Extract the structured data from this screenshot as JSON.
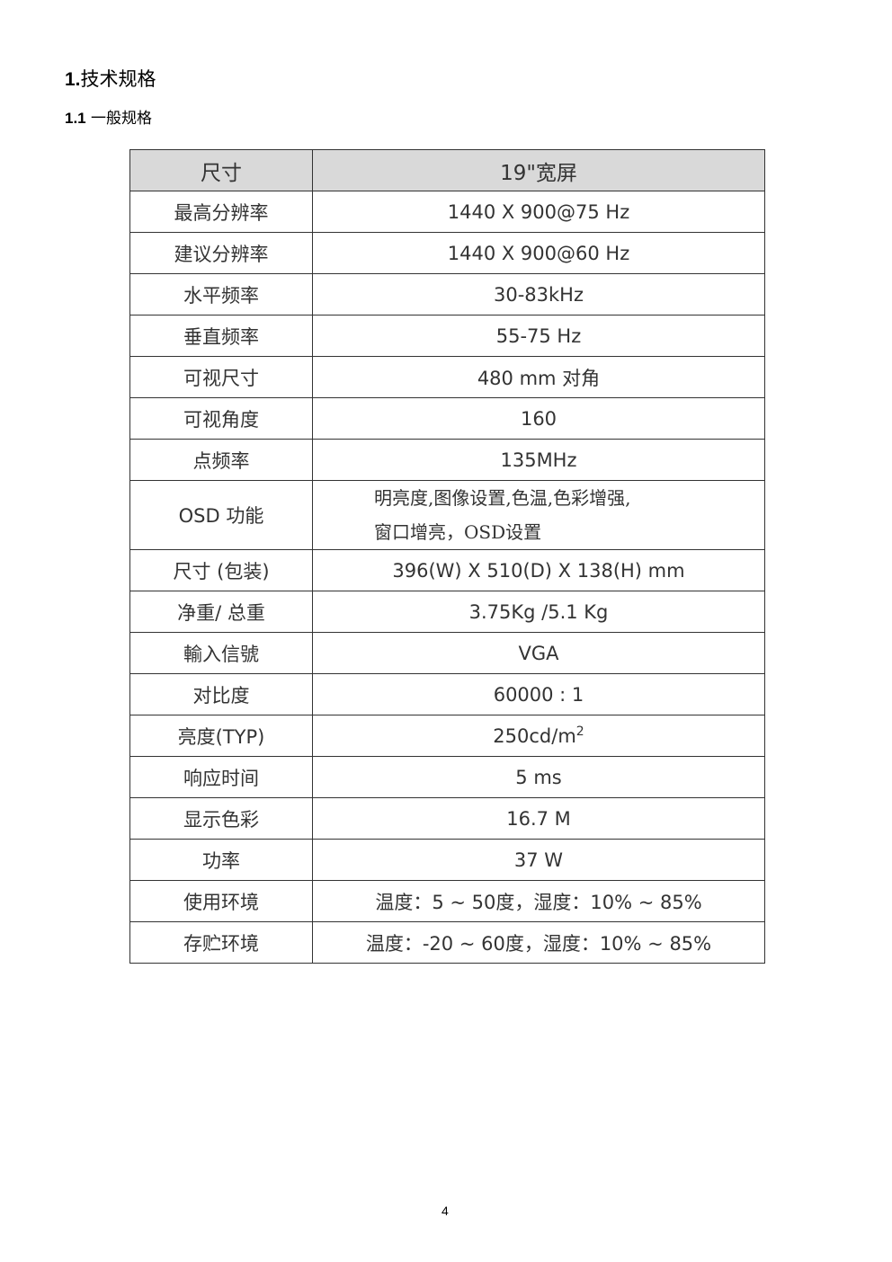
{
  "heading": {
    "number": "1.",
    "title": "技术规格"
  },
  "subheading": {
    "number": "1.1",
    "title": "一般规格"
  },
  "table": {
    "header": {
      "key": "尺寸",
      "value": "19\"宽屏"
    },
    "rows": [
      {
        "key": "最高分辨率",
        "value": "1440 X 900@75 Hz"
      },
      {
        "key": "建议分辨率",
        "value": "1440 X 900@60 Hz"
      },
      {
        "key": "水平频率",
        "value": "30-83kHz"
      },
      {
        "key": "垂直频率",
        "value": "55-75 Hz"
      },
      {
        "key": "可视尺寸",
        "value": "480 mm 对角"
      },
      {
        "key": "可视角度",
        "value": "160"
      },
      {
        "key": "点频率",
        "value": "135MHz"
      },
      {
        "key": "OSD 功能",
        "value_line1": "明亮度,图像设置,色温,色彩增强,",
        "value_line2": "窗口增亮，OSD设置"
      },
      {
        "key": "尺寸 (包装)",
        "value": "396(W) X 510(D) X 138(H) mm"
      },
      {
        "key": "净重/ 总重",
        "value": "3.75Kg /5.1 Kg"
      },
      {
        "key": "輸入信號",
        "value": "VGA"
      },
      {
        "key": "对比度",
        "value": "60000 : 1"
      },
      {
        "key": "亮度(TYP)",
        "value": "250cd/m",
        "value_sup": "2"
      },
      {
        "key": "响应时间",
        "value": "5 ms"
      },
      {
        "key": "显示色彩",
        "value": "16.7 M"
      },
      {
        "key": "功率",
        "value": "37 W"
      },
      {
        "key": "使用环境",
        "value": "温度：5 ~ 50度，湿度：10% ~ 85%"
      },
      {
        "key": "存贮环境",
        "value": "温度：-20 ~ 60度，湿度：10% ~ 85%"
      }
    ]
  },
  "footer": {
    "page_number": "4"
  }
}
